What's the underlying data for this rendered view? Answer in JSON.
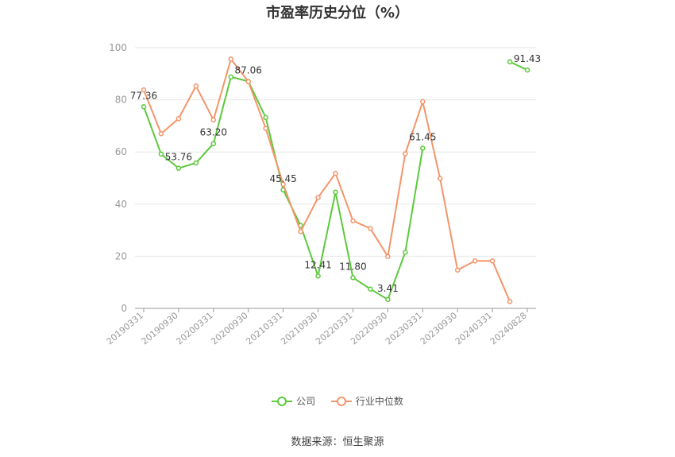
{
  "chart_data": {
    "type": "line",
    "title": "市盈率历史分位（%）",
    "ylim": [
      0,
      100
    ],
    "yticks": [
      0,
      20,
      40,
      60,
      80,
      100
    ],
    "grid": true,
    "legend_position": "bottom",
    "x": [
      "20190331",
      "20190630",
      "20190930",
      "20191231",
      "20200331",
      "20200630",
      "20200930",
      "20201231",
      "20210331",
      "20210630",
      "20210930",
      "20211231",
      "20220331",
      "20220630",
      "20220930",
      "20221231",
      "20230331",
      "20230630",
      "20230930",
      "20231231",
      "20240331",
      "20240630",
      "20240828"
    ],
    "x_tick_labels": [
      "20190331",
      "20190930",
      "20200331",
      "20200930",
      "20210331",
      "20210930",
      "20220331",
      "20220930",
      "20230331",
      "20230930",
      "20240331",
      "20240828"
    ],
    "series": [
      {
        "name": "公司",
        "color": "#5cc93b",
        "values": [
          77.36,
          59.2,
          53.76,
          55.8,
          63.2,
          88.8,
          87.06,
          73.2,
          45.45,
          31.8,
          12.41,
          44.6,
          11.8,
          7.4,
          3.41,
          21.5,
          61.45,
          null,
          null,
          null,
          null,
          94.6,
          91.43
        ],
        "labels": {
          "0": "77.36",
          "2": "53.76",
          "4": "63.20",
          "6": "87.06",
          "8": "45.45",
          "10": "12.41",
          "12": "11.80",
          "14": "3.41",
          "16": "61.45",
          "22": "91.43"
        }
      },
      {
        "name": "行业中位数",
        "color": "#f4956a",
        "values": [
          83.8,
          67.0,
          72.8,
          85.3,
          72.3,
          95.6,
          87.0,
          69.0,
          47.6,
          29.5,
          42.5,
          51.8,
          33.6,
          30.6,
          19.9,
          59.3,
          79.3,
          49.8,
          14.7,
          18.2,
          18.2,
          2.6,
          null
        ]
      }
    ]
  },
  "source_text": "数据来源：恒生聚源"
}
